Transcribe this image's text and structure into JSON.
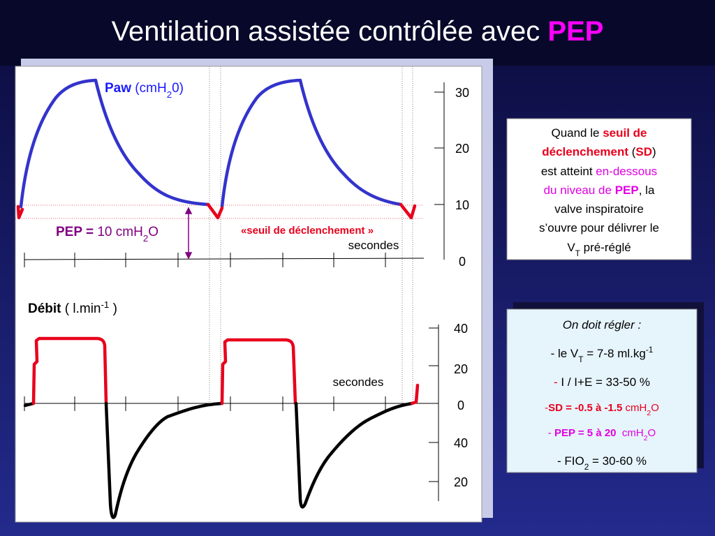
{
  "title": [
    {
      "text": "Ventilation assistée contrôlée avec "
    },
    {
      "text": "PEP",
      "color": "#ff00ff",
      "bold": true
    }
  ],
  "paw_panel": {
    "label": [
      {
        "text": "Paw",
        "bold": true,
        "color": "#1a1aff"
      },
      {
        "text": " (cmH",
        "color": "#1a1aff"
      },
      {
        "text": "2",
        "sub": true,
        "color": "#1a1aff"
      },
      {
        "text": "0)",
        "color": "#1a1aff"
      }
    ],
    "tick_labels": [
      "30",
      "20",
      "10",
      "0"
    ],
    "pep_label": [
      {
        "text": "PEP = ",
        "bold": true,
        "color": "#800080"
      },
      {
        "text": "10 cmH",
        "color": "#800080"
      },
      {
        "text": "2",
        "sub": true,
        "color": "#800080"
      },
      {
        "text": "O",
        "color": "#800080"
      }
    ],
    "trigger_label": [
      {
        "text": "«seuil de déclenchement »",
        "bold": true,
        "color": "#e8001c"
      }
    ],
    "x_label": "secondes"
  },
  "flow_panel": {
    "label": [
      {
        "text": "Débit",
        "bold": true
      },
      {
        "text": " ( l.min"
      },
      {
        "text": "-1",
        "sup": true
      },
      {
        "text": " )"
      }
    ],
    "tick_labels": [
      "40",
      "20",
      "0",
      "40",
      "20"
    ],
    "x_label": "secondes"
  },
  "info_box": {
    "lines": [
      [
        {
          "text": "Quand le "
        },
        {
          "text": "seuil de",
          "bold": true,
          "color": "#e8001c"
        }
      ],
      [
        {
          "text": "déclenchement",
          "bold": true,
          "color": "#e8001c"
        },
        {
          "text": " ("
        },
        {
          "text": "SD",
          "bold": true,
          "color": "#e8001c"
        },
        {
          "text": ")"
        }
      ],
      [
        {
          "text": "est atteint "
        },
        {
          "text": "en-dessous",
          "color": "#e000e0"
        }
      ],
      [
        {
          "text": "du niveau de ",
          "color": "#e000e0"
        },
        {
          "text": "PEP",
          "bold": true,
          "color": "#e000e0"
        },
        {
          "text": ", la"
        }
      ],
      [
        {
          "text": "valve inspiratoire"
        }
      ],
      [
        {
          "text": "s’ouvre pour délivrer le"
        }
      ],
      [
        {
          "text": "V"
        },
        {
          "text": "T",
          "sub": true
        },
        {
          "text": " pré-réglé"
        }
      ]
    ]
  },
  "settings_box": {
    "lines": [
      [
        {
          "text": "On doit régler :",
          "italic": true
        }
      ],
      [
        {
          "text": "- le V"
        },
        {
          "text": "T",
          "sub": true
        },
        {
          "text": " = 7-8 ml.kg"
        },
        {
          "text": "-1",
          "sup": true
        }
      ],
      [
        {
          "text": "- ",
          "color": "#e8001c"
        },
        {
          "text": "I / I+E = 33-50 %"
        }
      ],
      [
        {
          "text": "-",
          "color": "#e8001c"
        },
        {
          "text": "SD = -0.5 à -1.5",
          "bold": true,
          "color": "#e8001c"
        },
        {
          "text": " cmH",
          "color": "#e8001c"
        },
        {
          "text": "2",
          "sub": true,
          "color": "#e8001c"
        },
        {
          "text": "O",
          "color": "#e8001c"
        }
      ],
      [
        {
          "text": "- ",
          "color": "#e000e0"
        },
        {
          "text": "PEP = 5 à 20 ",
          "bold": true,
          "color": "#e000e0"
        },
        {
          "text": " cmH",
          "color": "#e000e0"
        },
        {
          "text": "2",
          "sub": true,
          "color": "#e000e0"
        },
        {
          "text": "O",
          "color": "#e000e0"
        }
      ],
      [
        {
          "text": "- FIO"
        },
        {
          "text": "2",
          "sub": true
        },
        {
          "text": " = 30-60 %"
        }
      ]
    ]
  }
}
